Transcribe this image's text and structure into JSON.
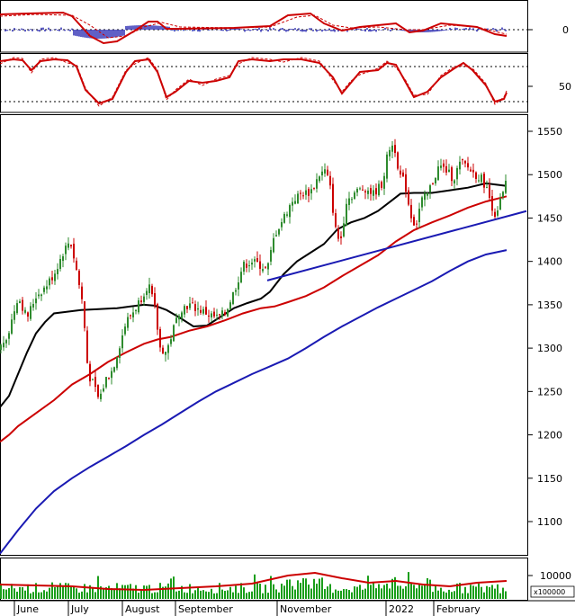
{
  "chart_data": {
    "type": "candlestick",
    "x_labels": [
      "June",
      "July",
      "August",
      "September",
      "November",
      "2022",
      "February"
    ],
    "panels": {
      "macd": {
        "y_ticks": [
          0
        ],
        "colors": {
          "line": "#cc0000",
          "signal": "#cc0000",
          "histogram": "#2b2bb3"
        }
      },
      "stochastic": {
        "y_ticks": [
          50
        ],
        "colors": {
          "line": "#cc0000",
          "signal": "#cc0000"
        }
      },
      "price": {
        "y_ticks": [
          1550,
          1500,
          1450,
          1400,
          1350,
          1300,
          1250,
          1200,
          1150,
          1100
        ],
        "ylim": [
          1060,
          1560
        ],
        "moving_averages": [
          {
            "color": "#000000",
            "points": [
              [
                0,
                1232
              ],
              [
                10,
                1245
              ],
              [
                20,
                1270
              ],
              [
                30,
                1295
              ],
              [
                40,
                1317
              ],
              [
                50,
                1330
              ],
              [
                60,
                1340
              ],
              [
                75,
                1342
              ],
              [
                90,
                1344
              ],
              [
                110,
                1345
              ],
              [
                130,
                1346
              ],
              [
                145,
                1348
              ],
              [
                160,
                1350
              ],
              [
                172,
                1349
              ],
              [
                185,
                1344
              ],
              [
                200,
                1335
              ],
              [
                215,
                1325
              ],
              [
                230,
                1326
              ],
              [
                245,
                1336
              ],
              [
                260,
                1346
              ],
              [
                275,
                1352
              ],
              [
                290,
                1357
              ],
              [
                300,
                1365
              ],
              [
                315,
                1385
              ],
              [
                330,
                1400
              ],
              [
                345,
                1410
              ],
              [
                360,
                1420
              ],
              [
                375,
                1437
              ],
              [
                390,
                1445
              ],
              [
                405,
                1450
              ],
              [
                420,
                1458
              ],
              [
                435,
                1470
              ],
              [
                445,
                1478
              ],
              [
                460,
                1479
              ],
              [
                480,
                1479
              ],
              [
                500,
                1482
              ],
              [
                520,
                1485
              ],
              [
                540,
                1490
              ],
              [
                555,
                1488
              ],
              [
                563,
                1487
              ]
            ]
          },
          {
            "color": "#cc0000",
            "points": [
              [
                0,
                1192
              ],
              [
                10,
                1200
              ],
              [
                20,
                1210
              ],
              [
                40,
                1225
              ],
              [
                60,
                1240
              ],
              [
                80,
                1258
              ],
              [
                100,
                1270
              ],
              [
                120,
                1284
              ],
              [
                140,
                1295
              ],
              [
                160,
                1305
              ],
              [
                175,
                1310
              ],
              [
                190,
                1313
              ],
              [
                210,
                1320
              ],
              [
                230,
                1325
              ],
              [
                250,
                1332
              ],
              [
                270,
                1340
              ],
              [
                290,
                1346
              ],
              [
                305,
                1348
              ],
              [
                320,
                1353
              ],
              [
                340,
                1360
              ],
              [
                360,
                1370
              ],
              [
                380,
                1383
              ],
              [
                400,
                1395
              ],
              [
                420,
                1407
              ],
              [
                440,
                1423
              ],
              [
                460,
                1436
              ],
              [
                480,
                1445
              ],
              [
                500,
                1453
              ],
              [
                520,
                1462
              ],
              [
                540,
                1469
              ],
              [
                555,
                1473
              ],
              [
                563,
                1475
              ]
            ]
          },
          {
            "color": "#1a1ab3",
            "points": [
              [
                0,
                1063
              ],
              [
                20,
                1090
              ],
              [
                40,
                1115
              ],
              [
                60,
                1135
              ],
              [
                80,
                1150
              ],
              [
                100,
                1163
              ],
              [
                120,
                1175
              ],
              [
                140,
                1187
              ],
              [
                160,
                1200
              ],
              [
                180,
                1212
              ],
              [
                200,
                1225
              ],
              [
                220,
                1238
              ],
              [
                240,
                1250
              ],
              [
                260,
                1260
              ],
              [
                280,
                1270
              ],
              [
                300,
                1279
              ],
              [
                320,
                1288
              ],
              [
                340,
                1300
              ],
              [
                360,
                1313
              ],
              [
                380,
                1325
              ],
              [
                400,
                1336
              ],
              [
                420,
                1347
              ],
              [
                440,
                1357
              ],
              [
                460,
                1367
              ],
              [
                480,
                1377
              ],
              [
                500,
                1389
              ],
              [
                520,
                1400
              ],
              [
                540,
                1408
              ],
              [
                563,
                1413
              ]
            ]
          }
        ],
        "trendlines": [
          {
            "color": "#1a1ab3",
            "points": [
              [
                297,
                1378
              ],
              [
                585,
                1458
              ]
            ]
          }
        ],
        "candle_colors": {
          "up": "#2e8b2e",
          "down": "#cc0000"
        }
      },
      "volume": {
        "y_ticks": [
          10000
        ],
        "unit_label": "x100000",
        "colors": {
          "bars": "#1a9e1a",
          "ma": "#cc0000"
        }
      }
    }
  }
}
